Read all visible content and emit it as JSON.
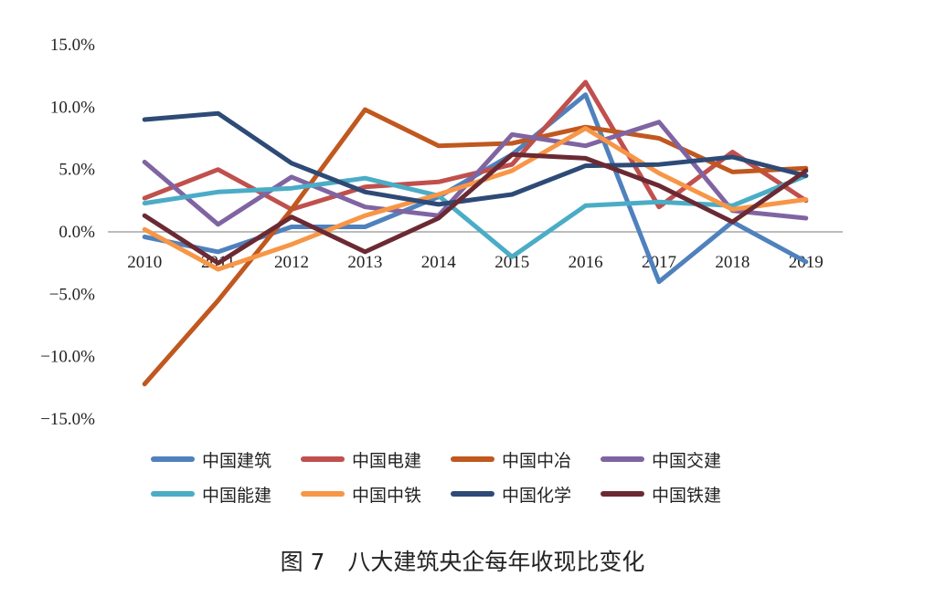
{
  "caption": "图 7　八大建筑央企每年收现比变化",
  "chart_data": {
    "type": "line",
    "x": [
      "2010",
      "2011",
      "2012",
      "2013",
      "2014",
      "2015",
      "2016",
      "2017",
      "2018",
      "2019"
    ],
    "ylim": [
      -15,
      15
    ],
    "yticks": [
      15,
      10,
      5,
      0,
      -5,
      -10,
      -15
    ],
    "ytick_labels": [
      "15.0%",
      "10.0%",
      "5.0%",
      "0.0%",
      "−5.0%",
      "−10.0%",
      "−15.0%"
    ],
    "grid": false,
    "legend_position": "bottom",
    "series": [
      {
        "name": "中国建筑",
        "color": "#4f81bd",
        "values": [
          -0.4,
          -1.6,
          0.4,
          0.4,
          2.8,
          6.2,
          11.0,
          -4.0,
          0.8,
          -2.4
        ]
      },
      {
        "name": "中国电建",
        "color": "#c0504d",
        "values": [
          2.7,
          5.0,
          1.8,
          3.6,
          4.0,
          5.4,
          12.0,
          2.0,
          6.4,
          2.5
        ]
      },
      {
        "name": "中国中冶",
        "color": "#c0581f",
        "values": [
          -12.2,
          -5.5,
          1.8,
          9.8,
          6.9,
          7.1,
          8.4,
          7.5,
          4.8,
          5.1
        ]
      },
      {
        "name": "中国交建",
        "color": "#8064a2",
        "values": [
          5.6,
          0.6,
          4.4,
          2.0,
          1.3,
          7.8,
          6.9,
          8.8,
          1.7,
          1.1
        ]
      },
      {
        "name": "中国能建",
        "color": "#4bacc6",
        "values": [
          2.3,
          3.2,
          3.5,
          4.3,
          2.9,
          -2.0,
          2.1,
          2.4,
          2.1,
          4.5
        ]
      },
      {
        "name": "中国中铁",
        "color": "#f79646",
        "values": [
          0.2,
          -3.0,
          -1.0,
          1.3,
          3.0,
          4.9,
          8.3,
          4.7,
          1.8,
          2.6
        ]
      },
      {
        "name": "中国化学",
        "color": "#2e4a76",
        "values": [
          9.0,
          9.5,
          5.5,
          3.2,
          2.2,
          3.0,
          5.3,
          5.4,
          6.0,
          4.5
        ]
      },
      {
        "name": "中国铁建",
        "color": "#6b2a33",
        "values": [
          1.3,
          -2.5,
          1.2,
          -1.6,
          1.1,
          6.2,
          5.9,
          3.7,
          0.8,
          4.9
        ]
      }
    ]
  }
}
